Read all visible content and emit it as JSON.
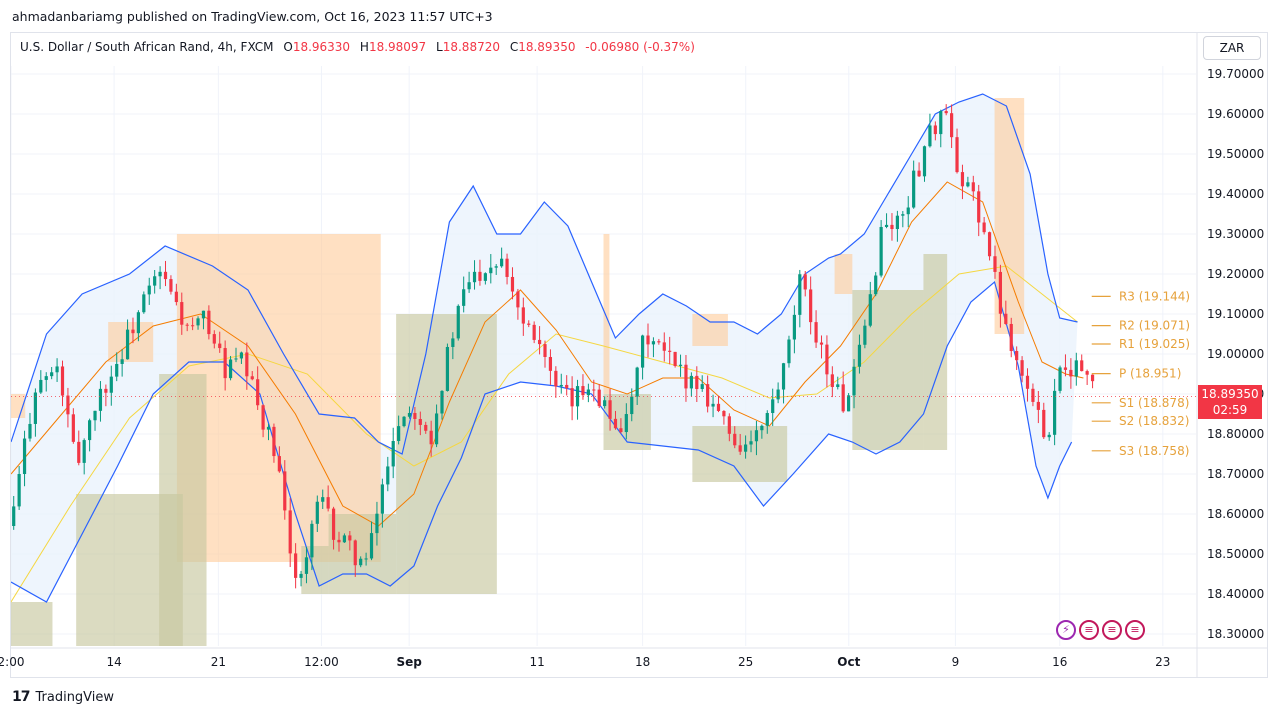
{
  "header": {
    "published_line": "ahmadanbariamg published on TradingView.com, Oct 16, 2023 11:57 UTC+3",
    "symbol": "U.S. Dollar / South African Rand, 4h, FXCM",
    "open_label": "O",
    "open": "18.96330",
    "high_label": "H",
    "high": "18.98097",
    "low_label": "L",
    "low": "18.88720",
    "close_label": "C",
    "close": "18.89350",
    "change": "-0.06980 (-0.37%)",
    "currency": "ZAR"
  },
  "footer": {
    "brand": "TradingView",
    "brand_logo": "17"
  },
  "price_label": {
    "price": "18.89350",
    "countdown": "02:59"
  },
  "event_icons": [
    "bolt-icon",
    "us-flag-icon",
    "us-flag-icon",
    "us-flag-icon"
  ],
  "colors": {
    "up": "#089981",
    "down": "#f23645",
    "bb": "#2962ff",
    "ema_fast": "#f57c00",
    "ema_slow": "#f5d742",
    "pivot_label": "#e6a23c",
    "resistance_box": "#ffcc99",
    "support_box": "#c8c8a0",
    "bb_fill": "#eaf2fd"
  },
  "chart_data": {
    "type": "candlestick",
    "title": "U.S. Dollar / South African Rand, 4h, FXCM",
    "y_ticks": [
      "19.70000",
      "19.60000",
      "19.50000",
      "19.40000",
      "19.30000",
      "19.20000",
      "19.10000",
      "19.00000",
      "18.90000",
      "18.80000",
      "18.70000",
      "18.60000",
      "18.50000",
      "18.40000",
      "18.30000"
    ],
    "ylim": [
      18.27,
      19.72
    ],
    "x_ticks": [
      {
        "label": "2:00",
        "bold": false,
        "t": 0
      },
      {
        "label": "14",
        "bold": false,
        "t": 0.087
      },
      {
        "label": "21",
        "bold": false,
        "t": 0.175
      },
      {
        "label": "12:00",
        "bold": false,
        "t": 0.262
      },
      {
        "label": "Sep",
        "bold": true,
        "t": 0.336
      },
      {
        "label": "11",
        "bold": false,
        "t": 0.444
      },
      {
        "label": "18",
        "bold": false,
        "t": 0.533
      },
      {
        "label": "25",
        "bold": false,
        "t": 0.62
      },
      {
        "label": "Oct",
        "bold": true,
        "t": 0.707
      },
      {
        "label": "9",
        "bold": false,
        "t": 0.797
      },
      {
        "label": "16",
        "bold": false,
        "t": 0.885
      },
      {
        "label": "23",
        "bold": false,
        "t": 0.972
      }
    ],
    "close_path": [
      [
        0,
        18.57
      ],
      [
        0.02,
        18.92
      ],
      [
        0.04,
        18.96
      ],
      [
        0.055,
        18.72
      ],
      [
        0.07,
        18.87
      ],
      [
        0.09,
        18.98
      ],
      [
        0.11,
        19.12
      ],
      [
        0.125,
        19.2
      ],
      [
        0.135,
        19.15
      ],
      [
        0.15,
        19.05
      ],
      [
        0.165,
        19.09
      ],
      [
        0.18,
        18.96
      ],
      [
        0.195,
        18.98
      ],
      [
        0.21,
        18.86
      ],
      [
        0.225,
        18.72
      ],
      [
        0.235,
        18.5
      ],
      [
        0.245,
        18.44
      ],
      [
        0.26,
        18.64
      ],
      [
        0.275,
        18.54
      ],
      [
        0.29,
        18.5
      ],
      [
        0.3,
        18.47
      ],
      [
        0.31,
        18.62
      ],
      [
        0.325,
        18.83
      ],
      [
        0.34,
        18.87
      ],
      [
        0.355,
        18.8
      ],
      [
        0.37,
        19.02
      ],
      [
        0.385,
        19.18
      ],
      [
        0.4,
        19.22
      ],
      [
        0.415,
        19.25
      ],
      [
        0.43,
        19.1
      ],
      [
        0.445,
        19.05
      ],
      [
        0.46,
        18.9
      ],
      [
        0.475,
        18.88
      ],
      [
        0.49,
        18.94
      ],
      [
        0.505,
        18.84
      ],
      [
        0.52,
        18.82
      ],
      [
        0.535,
        19.05
      ],
      [
        0.55,
        19.0
      ],
      [
        0.565,
        18.95
      ],
      [
        0.58,
        18.93
      ],
      [
        0.595,
        18.87
      ],
      [
        0.61,
        18.78
      ],
      [
        0.625,
        18.77
      ],
      [
        0.64,
        18.85
      ],
      [
        0.655,
        18.98
      ],
      [
        0.665,
        19.18
      ],
      [
        0.68,
        19.05
      ],
      [
        0.69,
        18.95
      ],
      [
        0.705,
        18.86
      ],
      [
        0.72,
        19.05
      ],
      [
        0.735,
        19.32
      ],
      [
        0.75,
        19.33
      ],
      [
        0.765,
        19.46
      ],
      [
        0.775,
        19.56
      ],
      [
        0.79,
        19.6
      ],
      [
        0.8,
        19.4
      ],
      [
        0.81,
        19.42
      ],
      [
        0.82,
        19.32
      ],
      [
        0.835,
        19.12
      ],
      [
        0.85,
        18.98
      ],
      [
        0.865,
        18.85
      ],
      [
        0.875,
        18.8
      ],
      [
        0.885,
        18.98
      ],
      [
        0.895,
        18.97
      ],
      [
        0.905,
        18.96
      ],
      [
        0.915,
        18.89
      ]
    ],
    "bollinger_upper": [
      [
        0,
        18.78
      ],
      [
        0.03,
        19.05
      ],
      [
        0.06,
        19.15
      ],
      [
        0.1,
        19.2
      ],
      [
        0.13,
        19.27
      ],
      [
        0.17,
        19.22
      ],
      [
        0.2,
        19.16
      ],
      [
        0.23,
        19.0
      ],
      [
        0.26,
        18.85
      ],
      [
        0.29,
        18.84
      ],
      [
        0.31,
        18.78
      ],
      [
        0.33,
        18.75
      ],
      [
        0.35,
        19.0
      ],
      [
        0.37,
        19.33
      ],
      [
        0.39,
        19.42
      ],
      [
        0.41,
        19.3
      ],
      [
        0.43,
        19.3
      ],
      [
        0.45,
        19.38
      ],
      [
        0.47,
        19.32
      ],
      [
        0.49,
        19.18
      ],
      [
        0.51,
        19.04
      ],
      [
        0.53,
        19.1
      ],
      [
        0.55,
        19.15
      ],
      [
        0.57,
        19.12
      ],
      [
        0.59,
        19.08
      ],
      [
        0.61,
        19.08
      ],
      [
        0.63,
        19.05
      ],
      [
        0.65,
        19.1
      ],
      [
        0.67,
        19.2
      ],
      [
        0.69,
        19.24
      ],
      [
        0.7,
        19.25
      ],
      [
        0.72,
        19.3
      ],
      [
        0.74,
        19.4
      ],
      [
        0.76,
        19.5
      ],
      [
        0.78,
        19.6
      ],
      [
        0.8,
        19.63
      ],
      [
        0.82,
        19.65
      ],
      [
        0.84,
        19.62
      ],
      [
        0.86,
        19.45
      ],
      [
        0.875,
        19.2
      ],
      [
        0.885,
        19.09
      ],
      [
        0.9,
        19.08
      ]
    ],
    "bollinger_lower": [
      [
        0,
        18.43
      ],
      [
        0.03,
        18.38
      ],
      [
        0.06,
        18.55
      ],
      [
        0.09,
        18.72
      ],
      [
        0.12,
        18.9
      ],
      [
        0.15,
        18.98
      ],
      [
        0.18,
        18.98
      ],
      [
        0.21,
        18.9
      ],
      [
        0.24,
        18.6
      ],
      [
        0.26,
        18.42
      ],
      [
        0.28,
        18.45
      ],
      [
        0.3,
        18.45
      ],
      [
        0.32,
        18.42
      ],
      [
        0.34,
        18.47
      ],
      [
        0.36,
        18.62
      ],
      [
        0.38,
        18.74
      ],
      [
        0.4,
        18.9
      ],
      [
        0.43,
        18.93
      ],
      [
        0.46,
        18.92
      ],
      [
        0.49,
        18.9
      ],
      [
        0.52,
        18.78
      ],
      [
        0.55,
        18.77
      ],
      [
        0.58,
        18.76
      ],
      [
        0.61,
        18.72
      ],
      [
        0.635,
        18.62
      ],
      [
        0.66,
        18.7
      ],
      [
        0.69,
        18.8
      ],
      [
        0.71,
        18.78
      ],
      [
        0.73,
        18.75
      ],
      [
        0.75,
        18.78
      ],
      [
        0.77,
        18.85
      ],
      [
        0.79,
        19.02
      ],
      [
        0.81,
        19.13
      ],
      [
        0.83,
        19.18
      ],
      [
        0.85,
        18.97
      ],
      [
        0.865,
        18.72
      ],
      [
        0.875,
        18.64
      ],
      [
        0.885,
        18.72
      ],
      [
        0.895,
        18.78
      ]
    ],
    "ema_fast": [
      [
        0,
        18.7
      ],
      [
        0.04,
        18.84
      ],
      [
        0.08,
        18.98
      ],
      [
        0.12,
        19.07
      ],
      [
        0.16,
        19.1
      ],
      [
        0.2,
        19.02
      ],
      [
        0.24,
        18.85
      ],
      [
        0.28,
        18.62
      ],
      [
        0.31,
        18.57
      ],
      [
        0.34,
        18.65
      ],
      [
        0.37,
        18.88
      ],
      [
        0.4,
        19.08
      ],
      [
        0.43,
        19.16
      ],
      [
        0.46,
        19.06
      ],
      [
        0.49,
        18.93
      ],
      [
        0.52,
        18.9
      ],
      [
        0.55,
        18.94
      ],
      [
        0.58,
        18.94
      ],
      [
        0.61,
        18.86
      ],
      [
        0.64,
        18.82
      ],
      [
        0.67,
        18.93
      ],
      [
        0.7,
        19.02
      ],
      [
        0.73,
        19.15
      ],
      [
        0.76,
        19.33
      ],
      [
        0.79,
        19.43
      ],
      [
        0.82,
        19.38
      ],
      [
        0.85,
        19.13
      ],
      [
        0.87,
        18.98
      ],
      [
        0.89,
        18.95
      ],
      [
        0.905,
        18.94
      ]
    ],
    "ema_slow": [
      [
        0,
        18.38
      ],
      [
        0.05,
        18.62
      ],
      [
        0.1,
        18.84
      ],
      [
        0.15,
        18.97
      ],
      [
        0.2,
        19.0
      ],
      [
        0.25,
        18.95
      ],
      [
        0.3,
        18.8
      ],
      [
        0.34,
        18.72
      ],
      [
        0.38,
        18.78
      ],
      [
        0.42,
        18.95
      ],
      [
        0.46,
        19.05
      ],
      [
        0.5,
        19.02
      ],
      [
        0.55,
        18.98
      ],
      [
        0.6,
        18.94
      ],
      [
        0.64,
        18.89
      ],
      [
        0.68,
        18.9
      ],
      [
        0.72,
        18.98
      ],
      [
        0.76,
        19.1
      ],
      [
        0.8,
        19.2
      ],
      [
        0.84,
        19.22
      ],
      [
        0.87,
        19.15
      ],
      [
        0.9,
        19.08
      ]
    ],
    "resistance_zones": [
      {
        "t0": 0.0,
        "t1": 0.012,
        "low": 18.84,
        "high": 18.9
      },
      {
        "t0": 0.082,
        "t1": 0.12,
        "low": 18.98,
        "high": 19.08
      },
      {
        "t0": 0.14,
        "t1": 0.312,
        "low": 18.48,
        "high": 19.3
      },
      {
        "t0": 0.5,
        "t1": 0.505,
        "low": 18.9,
        "high": 19.3
      },
      {
        "t0": 0.575,
        "t1": 0.605,
        "low": 19.02,
        "high": 19.1
      },
      {
        "t0": 0.695,
        "t1": 0.71,
        "low": 19.15,
        "high": 19.25
      },
      {
        "t0": 0.83,
        "t1": 0.855,
        "low": 19.05,
        "high": 19.64
      }
    ],
    "support_zones": [
      {
        "t0": 0.0,
        "t1": 0.035,
        "low": 18.27,
        "high": 18.38
      },
      {
        "t0": 0.055,
        "t1": 0.145,
        "low": 18.27,
        "high": 18.65
      },
      {
        "t0": 0.125,
        "t1": 0.165,
        "low": 18.27,
        "high": 18.95
      },
      {
        "t0": 0.245,
        "t1": 0.268,
        "low": 18.4,
        "high": 18.52
      },
      {
        "t0": 0.268,
        "t1": 0.325,
        "low": 18.4,
        "high": 18.6
      },
      {
        "t0": 0.325,
        "t1": 0.41,
        "low": 18.4,
        "high": 19.1
      },
      {
        "t0": 0.5,
        "t1": 0.54,
        "low": 18.76,
        "high": 18.9
      },
      {
        "t0": 0.575,
        "t1": 0.655,
        "low": 18.68,
        "high": 18.82
      },
      {
        "t0": 0.71,
        "t1": 0.77,
        "low": 18.76,
        "high": 19.16
      },
      {
        "t0": 0.77,
        "t1": 0.79,
        "low": 18.76,
        "high": 19.25
      }
    ],
    "pivots": [
      {
        "name": "R3",
        "label": "R3 (19.144)",
        "value": 19.144
      },
      {
        "name": "R2",
        "label": "R2 (19.071)",
        "value": 19.071
      },
      {
        "name": "R1",
        "label": "R1 (19.025)",
        "value": 19.025
      },
      {
        "name": "P",
        "label": "P (18.951)",
        "value": 18.951
      },
      {
        "name": "S1",
        "label": "S1 (18.878)",
        "value": 18.878
      },
      {
        "name": "S2",
        "label": "S2 (18.832)",
        "value": 18.832
      },
      {
        "name": "S3",
        "label": "S3 (18.758)",
        "value": 18.758
      }
    ],
    "last_price": 18.8935,
    "grid": true
  }
}
